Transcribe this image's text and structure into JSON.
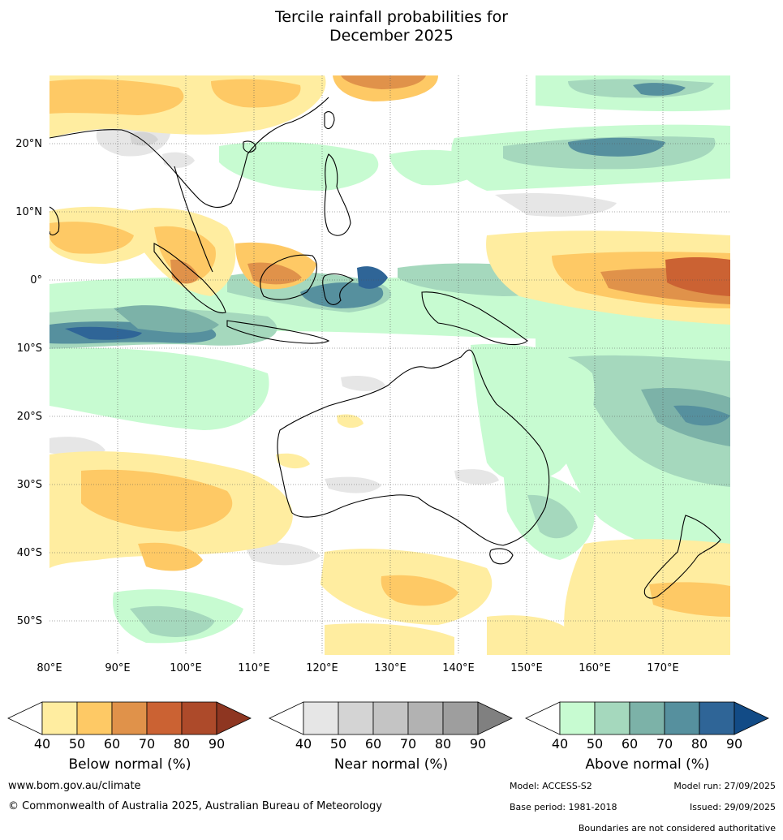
{
  "title_line1": "Tercile rainfall probabilities for",
  "title_line2": "December 2025",
  "map": {
    "lon_labels": [
      "80°E",
      "90°E",
      "100°E",
      "110°E",
      "120°E",
      "130°E",
      "140°E",
      "150°E",
      "160°E",
      "170°E"
    ],
    "lat_labels": [
      "20°N",
      "10°N",
      "0°",
      "10°S",
      "20°S",
      "30°S",
      "40°S",
      "50°S"
    ],
    "lon_range": [
      80,
      180
    ],
    "lat_range": [
      -55,
      30
    ]
  },
  "colorbars": {
    "ticks": [
      "40",
      "50",
      "60",
      "70",
      "80",
      "90"
    ],
    "below": {
      "label": "Below normal (%)",
      "colors": [
        "#ffffff",
        "#ffeda0",
        "#fec965",
        "#e0924a",
        "#cb6233",
        "#ad4a2a",
        "#8e3621"
      ]
    },
    "near": {
      "label": "Near normal (%)",
      "colors": [
        "#ffffff",
        "#e6e6e6",
        "#d4d4d4",
        "#c4c4c4",
        "#b2b2b2",
        "#9e9e9e",
        "#808080"
      ]
    },
    "above": {
      "label": "Above normal (%)",
      "colors": [
        "#ffffff",
        "#c7fbd1",
        "#a5d8bd",
        "#7cb2a8",
        "#56909e",
        "#2f6597",
        "#124b86"
      ]
    }
  },
  "footer": {
    "website": "www.bom.gov.au/climate",
    "copyright": "© Commonwealth of Australia 2025, Australian Bureau of Meteorology",
    "model": "Model: ACCESS-S2",
    "base_period": "Base period: 1981-2018",
    "model_run": "Model run: 27/09/2025",
    "issued": "Issued: 29/09/2025",
    "disclaimer": "Boundaries are not considered authoritative"
  }
}
